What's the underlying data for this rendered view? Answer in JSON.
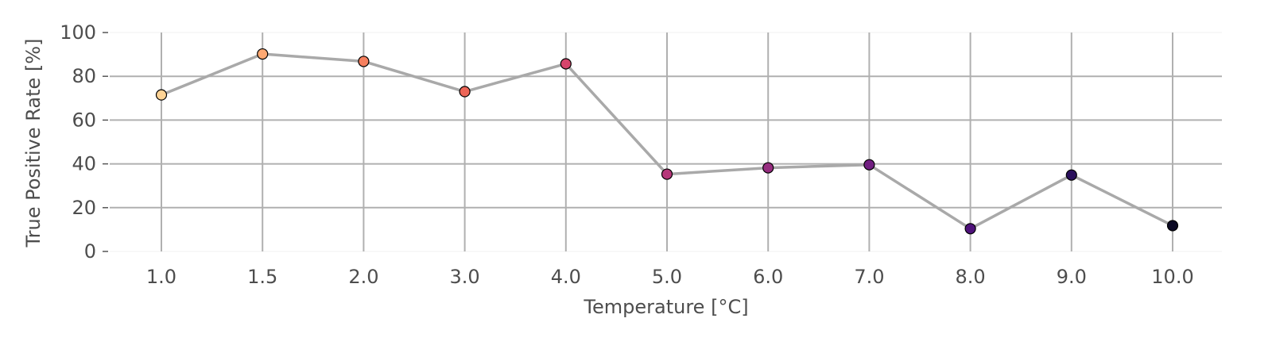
{
  "chart_data": {
    "type": "line",
    "xlabel": "Temperature [°C]",
    "ylabel": "True Positive Rate [%]",
    "categories": [
      "1.0",
      "1.5",
      "2.0",
      "3.0",
      "4.0",
      "5.0",
      "6.0",
      "7.0",
      "8.0",
      "9.0",
      "10.0"
    ],
    "values": [
      71.5,
      90.2,
      86.8,
      73.0,
      85.7,
      35.3,
      38.2,
      39.6,
      10.4,
      34.9,
      11.8
    ],
    "ylim": [
      0,
      100
    ],
    "yticks": [
      0,
      20,
      40,
      60,
      80,
      100
    ],
    "grid": true,
    "legend": "none",
    "line_color": "#a9a9a9",
    "marker_colors": [
      "#fed395",
      "#fea973",
      "#f6805f",
      "#ec6557",
      "#d6456c",
      "#b6377a",
      "#962d7f",
      "#711f81",
      "#4f127b",
      "#2a0f5c",
      "#0b0924"
    ],
    "marker_edge_color": "#000000"
  }
}
